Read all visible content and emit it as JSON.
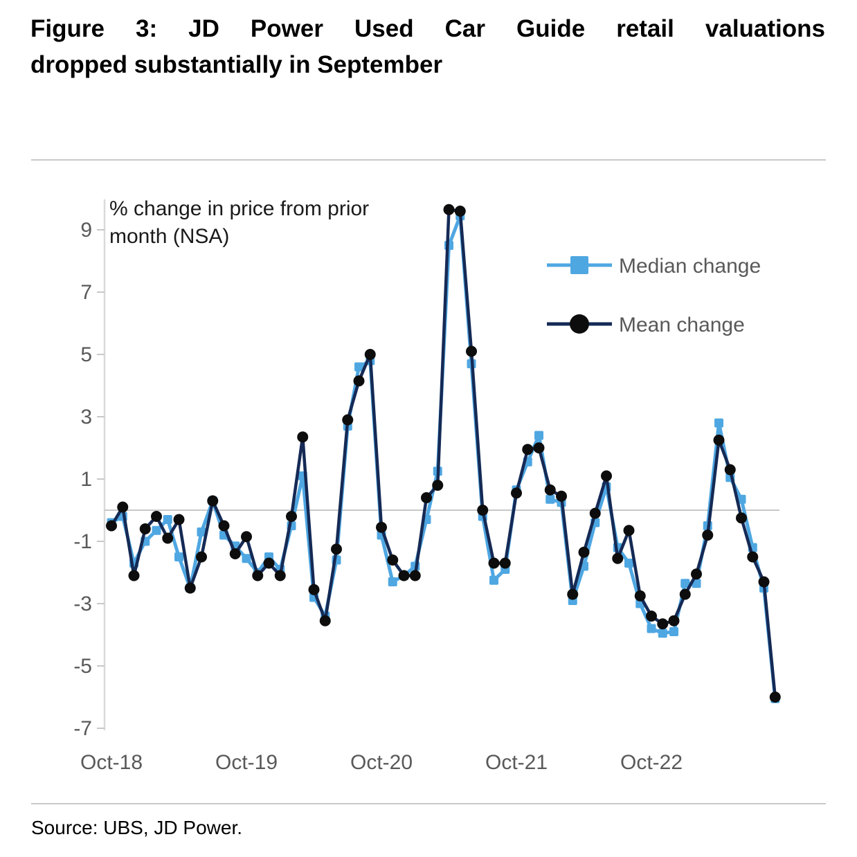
{
  "title": {
    "line1": "Figure 3: JD Power Used Car Guide retail valuations",
    "line2": "dropped substantially in September"
  },
  "source": "Source: UBS, JD Power.",
  "colors": {
    "median": "#4FA7E2",
    "mean_line": "#152A55",
    "mean_marker": "#0D0D0D",
    "text_gray": "#595959",
    "grid_line": "#C8C8C8",
    "axis_line": "#D9D9D9"
  },
  "chart_data": {
    "type": "line",
    "title": "Figure 3: JD Power Used Car Guide retail valuations dropped substantially in September",
    "ylabel": "% change in price from prior month (NSA)",
    "ylabel_lines": {
      "line1": "% change in price from prior",
      "line2": "month (NSA)"
    },
    "xlabel": "",
    "ylim": [
      -7,
      9
    ],
    "yticks": [
      9,
      7,
      5,
      3,
      1,
      -1,
      -3,
      -5,
      -7
    ],
    "grid": "zero line only",
    "legend_position": "upper right",
    "x": [
      "Oct-18",
      "Nov-18",
      "Dec-18",
      "Jan-19",
      "Feb-19",
      "Mar-19",
      "Apr-19",
      "May-19",
      "Jun-19",
      "Jul-19",
      "Aug-19",
      "Sep-19",
      "Oct-19",
      "Nov-19",
      "Dec-19",
      "Jan-20",
      "Feb-20",
      "Mar-20",
      "Apr-20",
      "May-20",
      "Jun-20",
      "Jul-20",
      "Aug-20",
      "Sep-20",
      "Oct-20",
      "Nov-20",
      "Dec-20",
      "Jan-21",
      "Feb-21",
      "Mar-21",
      "Apr-21",
      "May-21",
      "Jun-21",
      "Jul-21",
      "Aug-21",
      "Sep-21",
      "Oct-21",
      "Nov-21",
      "Dec-21",
      "Jan-22",
      "Feb-22",
      "Mar-22",
      "Apr-22",
      "May-22",
      "Jun-22",
      "Jul-22",
      "Aug-22",
      "Sep-22",
      "Oct-22",
      "Nov-22",
      "Dec-22",
      "Jan-23",
      "Feb-23",
      "Mar-23",
      "Apr-23",
      "May-23",
      "Jun-23",
      "Jul-23",
      "Aug-23",
      "Sep-23"
    ],
    "x_tick_labels": [
      "Oct-18",
      "Oct-19",
      "Oct-20",
      "Oct-21",
      "Oct-22"
    ],
    "x_tick_indices": [
      0,
      12,
      24,
      36,
      48
    ],
    "series": [
      {
        "name": "Median change",
        "marker": "square",
        "color": "#4FA7E2",
        "values": [
          -0.4,
          -0.2,
          -1.7,
          -1.0,
          -0.65,
          -0.3,
          -1.5,
          -2.5,
          -0.7,
          0.3,
          -0.8,
          -1.15,
          -1.55,
          -2.0,
          -1.5,
          -1.9,
          -0.5,
          1.1,
          -2.8,
          -3.4,
          -1.6,
          2.7,
          4.6,
          4.8,
          -0.8,
          -2.3,
          -2.1,
          -1.8,
          -0.3,
          1.25,
          8.5,
          9.45,
          4.7,
          -0.2,
          -2.25,
          -1.9,
          0.65,
          1.55,
          2.4,
          0.35,
          0.25,
          -2.9,
          -1.8,
          -0.4,
          0.75,
          -1.2,
          -1.7,
          -3.0,
          -3.8,
          -3.95,
          -3.9,
          -2.35,
          -2.35,
          -0.5,
          2.8,
          1.05,
          0.35,
          -1.2,
          -2.5,
          -6.05
        ]
      },
      {
        "name": "Mean change",
        "marker": "circle",
        "color": "#152A55",
        "marker_color": "#0D0D0D",
        "values": [
          -0.5,
          0.1,
          -2.1,
          -0.6,
          -0.2,
          -0.9,
          -0.3,
          -2.5,
          -1.5,
          0.3,
          -0.5,
          -1.4,
          -0.85,
          -2.1,
          -1.7,
          -2.1,
          -0.2,
          2.35,
          -2.55,
          -3.55,
          -1.25,
          2.9,
          4.15,
          5.0,
          -0.55,
          -1.6,
          -2.1,
          -2.1,
          0.4,
          0.8,
          9.65,
          9.6,
          5.1,
          0.0,
          -1.7,
          -1.7,
          0.55,
          1.95,
          2.0,
          0.65,
          0.45,
          -2.7,
          -1.35,
          -0.1,
          1.1,
          -1.55,
          -0.65,
          -2.75,
          -3.4,
          -3.65,
          -3.55,
          -2.7,
          -2.05,
          -0.8,
          2.25,
          1.3,
          -0.25,
          -1.5,
          -2.3,
          -6.0
        ]
      }
    ]
  }
}
